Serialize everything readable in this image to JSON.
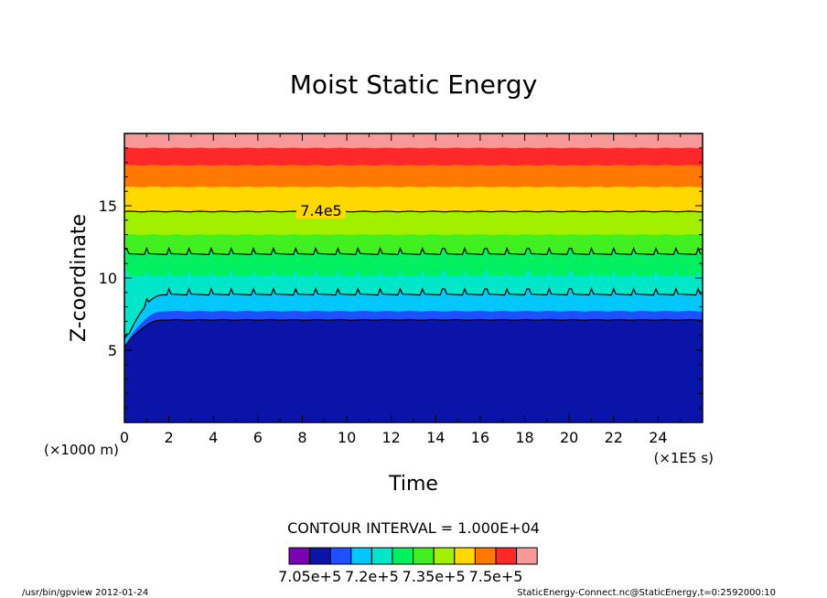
{
  "chart_data": {
    "type": "contour",
    "title": "Moist Static Energy",
    "xlabel": "Time",
    "ylabel": "Z-coordinate",
    "x_unit_label": "(×1E5 s)",
    "y_unit_label": "(×1000 m)",
    "xlim": [
      0,
      26
    ],
    "ylim": [
      0,
      20
    ],
    "x_ticks": [
      0,
      2,
      4,
      6,
      8,
      10,
      12,
      14,
      16,
      18,
      20,
      22,
      24
    ],
    "y_ticks": [
      5,
      10,
      15
    ],
    "contour_interval_text": "CONTOUR INTERVAL = 1.000E+04",
    "contour_label": "7.4e5",
    "colorbar": {
      "colors": [
        "#7a00b4",
        "#0a14a8",
        "#1e50ff",
        "#00c8ff",
        "#00e6c8",
        "#00f060",
        "#40f020",
        "#a0f000",
        "#ffd800",
        "#ff7800",
        "#ff2828",
        "#f89898"
      ],
      "tick_labels": [
        "7.05e+5",
        "7.2e+5",
        "7.35e+5",
        "7.5e+5"
      ]
    },
    "bands": [
      {
        "color": "#0a14a8",
        "top": 7.1
      },
      {
        "color": "#1e50ff",
        "top": 7.7
      },
      {
        "color": "#00c8ff",
        "top": 8.9
      },
      {
        "color": "#00e6c8",
        "top": 10.2
      },
      {
        "color": "#00f060",
        "top": 11.7
      },
      {
        "color": "#40f020",
        "top": 13.0
      },
      {
        "color": "#a0f000",
        "top": 14.6
      },
      {
        "color": "#ffd800",
        "top": 16.3
      },
      {
        "color": "#ff7800",
        "top": 17.8
      },
      {
        "color": "#ff2828",
        "top": 19.0
      },
      {
        "color": "#f89898",
        "top": 20.0
      }
    ],
    "contour_lines": [
      7.1,
      8.9,
      11.7,
      14.6
    ]
  },
  "footer": {
    "left": "/usr/bin/gpview   2012-01-24",
    "right": "StaticEnergy-Connect.nc@StaticEnergy,t=0:2592000:10"
  }
}
